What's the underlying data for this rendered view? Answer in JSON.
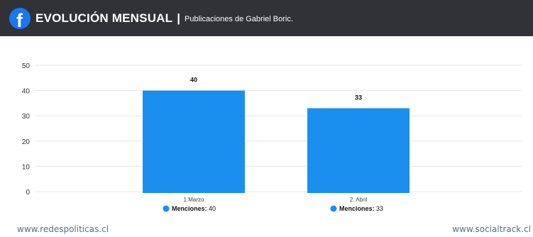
{
  "header": {
    "logo_letter": "f",
    "title": "EVOLUCIÓN MENSUAL",
    "separator": "|",
    "subtitle": "Publicaciones de Gabriel Boric."
  },
  "chart_data": {
    "type": "bar",
    "categories": [
      "1.Marzo",
      "2. Abril"
    ],
    "values": [
      40,
      33
    ],
    "ylim": [
      0,
      50
    ],
    "yticks": [
      0,
      10,
      20,
      30,
      40,
      50
    ],
    "grid": true,
    "bar_color": "#1a8ff0",
    "legend": [
      {
        "label": "Menciones:",
        "value": 40
      },
      {
        "label": "Menciones:",
        "value": 33
      }
    ],
    "legend_placement": "bottom"
  },
  "footer": {
    "left_url": "www.redespoliticas.cl",
    "right_url": "www.socialtrack.cl"
  }
}
